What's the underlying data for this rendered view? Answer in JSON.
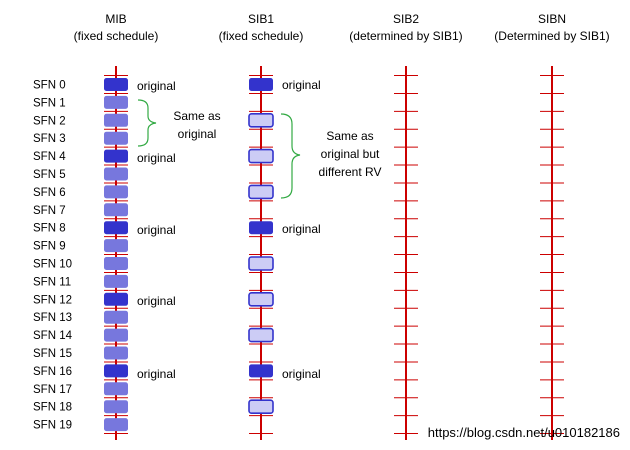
{
  "columns": [
    {
      "id": "mib",
      "title": "MIB",
      "subtitle": "(fixed schedule)"
    },
    {
      "id": "sib1",
      "title": "SIB1",
      "subtitle": "(fixed schedule)"
    },
    {
      "id": "sib2",
      "title": "SIB2",
      "subtitle": "(determined by SIB1)"
    },
    {
      "id": "sibn",
      "title": "SIBN",
      "subtitle": "(Determined by SIB1)"
    }
  ],
  "sfn_labels": [
    "SFN 0",
    "SFN 1",
    "SFN 2",
    "SFN 3",
    "SFN 4",
    "SFN 5",
    "SFN 6",
    "SFN 7",
    "SFN 8",
    "SFN 9",
    "SFN 10",
    "SFN 11",
    "SFN 12",
    "SFN 13",
    "SFN 14",
    "SFN 15",
    "SFN 16",
    "SFN 17",
    "SFN 18",
    "SFN 19"
  ],
  "mib": {
    "original_sfns": [
      0,
      4,
      8,
      12,
      16
    ],
    "repeat_sfns": [
      1,
      2,
      3,
      5,
      6,
      7,
      9,
      10,
      11,
      13,
      14,
      15,
      17,
      18,
      19
    ]
  },
  "sib1": {
    "original_sfns": [
      0,
      8,
      16
    ],
    "different_rv_sfns": [
      2,
      4,
      6,
      10,
      12,
      14,
      18
    ]
  },
  "labels": {
    "original": "original",
    "same_as": "Same as",
    "original_word": "original",
    "same_as_2": "Same as",
    "original_but": "original but",
    "different_rv": "different RV",
    "watermark": "https://blog.csdn.net/u010182186"
  },
  "colors": {
    "timeline": "#cc0000",
    "original_fill": "#3333cc",
    "repeat_fill": "#7777dd",
    "rv_fill": "#ccccf5",
    "rv_border": "#3333cc",
    "brace": "#33aa44"
  }
}
